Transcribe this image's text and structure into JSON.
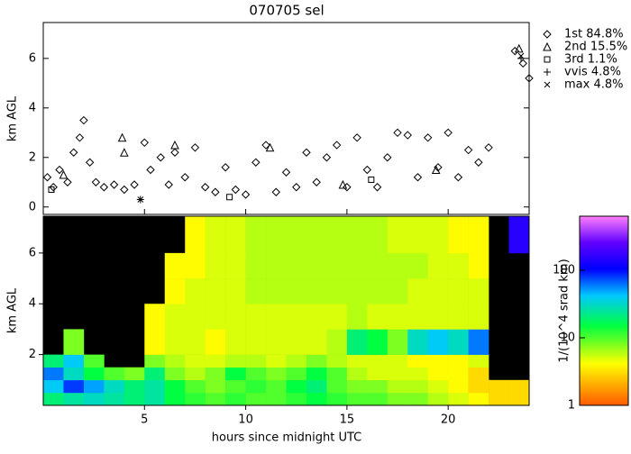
{
  "chart_data": [
    {
      "type": "scatter",
      "title": "070705 sel",
      "ylabel": "km AGL",
      "xlim": [
        0,
        24
      ],
      "ylim": [
        -0.3,
        7.45
      ],
      "yticks": [
        0,
        2,
        4,
        6
      ],
      "series": [
        {
          "name": "1st 84.8%",
          "marker": "diamond",
          "color": "#000000",
          "x": [
            0.2,
            0.5,
            0.8,
            1.2,
            1.5,
            1.8,
            2.0,
            2.3,
            2.6,
            3.0,
            3.5,
            4.0,
            4.5,
            5.0,
            5.3,
            5.8,
            6.2,
            6.5,
            7.0,
            7.5,
            8.0,
            8.5,
            9.0,
            9.5,
            10.0,
            10.5,
            11.0,
            11.5,
            12.0,
            12.5,
            13.0,
            13.5,
            14.0,
            14.5,
            15.0,
            15.5,
            16.0,
            16.5,
            17.0,
            17.5,
            18.0,
            18.5,
            19.0,
            19.5,
            20.0,
            20.5,
            21.0,
            21.5,
            22.0,
            23.3,
            23.7,
            24.0
          ],
          "values": [
            1.2,
            0.8,
            1.5,
            1.0,
            2.2,
            2.8,
            3.5,
            1.8,
            1.0,
            0.8,
            0.9,
            0.7,
            0.9,
            2.6,
            1.5,
            2.0,
            0.9,
            2.2,
            1.2,
            2.4,
            0.8,
            0.6,
            1.6,
            0.7,
            0.5,
            1.8,
            2.5,
            0.6,
            1.4,
            0.8,
            2.2,
            1.0,
            2.0,
            2.5,
            0.8,
            2.8,
            1.5,
            0.8,
            2.0,
            3.0,
            2.9,
            1.2,
            2.8,
            1.6,
            3.0,
            1.2,
            2.3,
            1.8,
            2.4,
            6.3,
            5.8,
            5.2
          ]
        },
        {
          "name": "2nd 15.5%",
          "marker": "triangle",
          "color": "#000000",
          "x": [
            1.0,
            3.9,
            4.0,
            6.5,
            11.2,
            14.8,
            19.4,
            23.5
          ],
          "values": [
            1.3,
            2.8,
            2.2,
            2.5,
            2.4,
            0.9,
            1.5,
            6.4
          ]
        },
        {
          "name": "3rd  1.1%",
          "marker": "square",
          "color": "#000000",
          "x": [
            0.4,
            9.2,
            16.2
          ],
          "values": [
            0.7,
            0.4,
            1.1
          ]
        },
        {
          "name": "vvis  4.8%",
          "marker": "plus",
          "color": "#000000",
          "x": [
            4.8,
            23.6
          ],
          "values": [
            0.3,
            6.0
          ]
        },
        {
          "name": "max  4.8%",
          "marker": "x",
          "color": "#000000",
          "x": [
            4.8,
            23.6
          ],
          "values": [
            0.3,
            6.1
          ]
        }
      ]
    },
    {
      "type": "heatmap",
      "ylabel": "km AGL",
      "xlabel": "hours since midnight UTC",
      "xlim": [
        0,
        24
      ],
      "ylim": [
        0,
        7.45
      ],
      "xticks": [
        5,
        10,
        15,
        20
      ],
      "yticks": [
        2,
        4,
        6
      ],
      "x_bins": [
        0,
        1,
        2,
        3,
        4,
        5,
        6,
        7,
        8,
        9,
        10,
        11,
        12,
        13,
        14,
        15,
        16,
        17,
        18,
        19,
        20,
        21,
        22,
        23,
        24
      ],
      "y_bins": [
        0,
        0.5,
        1,
        1.5,
        2,
        3,
        4,
        5,
        6,
        7.45
      ],
      "values": [
        [
          20,
          25,
          30,
          25,
          20,
          25,
          15,
          12,
          10,
          12,
          10,
          10,
          12,
          15,
          12,
          10,
          10,
          8,
          8,
          6,
          5,
          4,
          3,
          3
        ],
        [
          40,
          80,
          50,
          30,
          20,
          25,
          15,
          10,
          8,
          10,
          12,
          10,
          15,
          20,
          10,
          8,
          8,
          6,
          6,
          5,
          4,
          3,
          3,
          3
        ],
        [
          60,
          30,
          15,
          10,
          8,
          20,
          8,
          6,
          8,
          15,
          10,
          8,
          10,
          15,
          10,
          6,
          5,
          5,
          5,
          4,
          4,
          3,
          null,
          null
        ],
        [
          20,
          40,
          10,
          null,
          null,
          8,
          6,
          5,
          5,
          6,
          6,
          5,
          6,
          8,
          6,
          5,
          5,
          5,
          4,
          4,
          4,
          5,
          null,
          null
        ],
        [
          null,
          8,
          null,
          null,
          null,
          4,
          5,
          5,
          4,
          5,
          5,
          5,
          5,
          5,
          6,
          20,
          15,
          8,
          30,
          40,
          30,
          60,
          null,
          null
        ],
        [
          null,
          null,
          null,
          null,
          null,
          4,
          5,
          5,
          5,
          5,
          5,
          5,
          5,
          5,
          5,
          6,
          5,
          5,
          5,
          5,
          5,
          5,
          null,
          null
        ],
        [
          null,
          null,
          null,
          null,
          null,
          null,
          4,
          5,
          5,
          5,
          6,
          6,
          6,
          6,
          6,
          6,
          6,
          6,
          5,
          5,
          5,
          5,
          null,
          null
        ],
        [
          null,
          null,
          null,
          null,
          null,
          null,
          4,
          4,
          5,
          5,
          6,
          6,
          6,
          6,
          6,
          6,
          6,
          6,
          6,
          5,
          5,
          4,
          null,
          null
        ],
        [
          null,
          null,
          null,
          null,
          null,
          null,
          null,
          4,
          5,
          5,
          6,
          6,
          6,
          6,
          6,
          6,
          6,
          5,
          5,
          5,
          4,
          4,
          null,
          150
        ]
      ],
      "colorbar_label": "1/(10^4 srad km)",
      "log_scale": true,
      "clim": [
        1,
        630
      ],
      "cticks": [
        1,
        10,
        100
      ]
    }
  ]
}
